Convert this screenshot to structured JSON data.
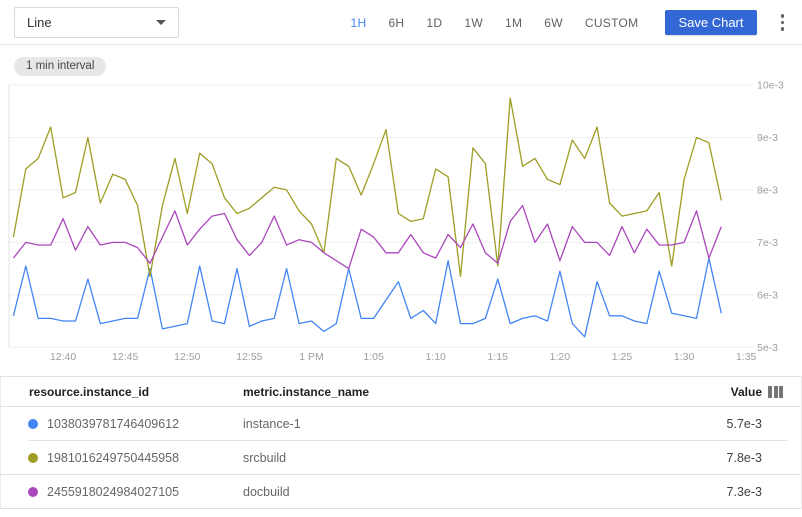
{
  "toolbar": {
    "chart_type_selected": "Line",
    "time_ranges": [
      "1H",
      "6H",
      "1D",
      "1W",
      "1M",
      "6W",
      "CUSTOM"
    ],
    "selected_range": "1H",
    "save_button": "Save Chart"
  },
  "chart": {
    "interval_chip": "1 min interval"
  },
  "chart_data": {
    "type": "line",
    "title": "",
    "xlabel": "",
    "ylabel": "",
    "grid": true,
    "legend_position": "table-below",
    "y_unit": "e-3",
    "y_range_e3": [
      5,
      10
    ],
    "y_tick_labels": [
      "10e-3",
      "9e-3",
      "8e-3",
      "7e-3",
      "6e-3",
      "5e-3"
    ],
    "x_tick_labels": [
      "12:40",
      "12:45",
      "12:50",
      "12:55",
      "1 PM",
      "1:05",
      "1:10",
      "1:15",
      "1:20",
      "1:25",
      "1:30",
      "1:35"
    ],
    "x": [
      "12:36",
      "12:37",
      "12:38",
      "12:39",
      "12:40",
      "12:41",
      "12:42",
      "12:43",
      "12:44",
      "12:45",
      "12:46",
      "12:47",
      "12:48",
      "12:49",
      "12:50",
      "12:51",
      "12:52",
      "12:53",
      "12:54",
      "12:55",
      "12:56",
      "12:57",
      "12:58",
      "12:59",
      "1:00",
      "1:01",
      "1:02",
      "1:03",
      "1:04",
      "1:05",
      "1:06",
      "1:07",
      "1:08",
      "1:09",
      "1:10",
      "1:11",
      "1:12",
      "1:13",
      "1:14",
      "1:15",
      "1:16",
      "1:17",
      "1:18",
      "1:19",
      "1:20",
      "1:21",
      "1:22",
      "1:23",
      "1:24",
      "1:25",
      "1:26",
      "1:27",
      "1:28",
      "1:29",
      "1:30",
      "1:31",
      "1:32",
      "1:33"
    ],
    "series": [
      {
        "name": "instance-1",
        "color": "#4285F4",
        "latest_value": "5.7e-3",
        "values_e3": [
          5.6,
          6.55,
          5.55,
          5.55,
          5.5,
          5.5,
          6.3,
          5.45,
          5.5,
          5.55,
          5.55,
          6.5,
          5.35,
          5.4,
          5.45,
          6.55,
          5.5,
          5.45,
          6.5,
          5.4,
          5.5,
          5.55,
          6.5,
          5.45,
          5.5,
          5.3,
          5.45,
          6.5,
          5.55,
          5.55,
          5.9,
          6.25,
          5.55,
          5.7,
          5.45,
          6.65,
          5.45,
          5.45,
          5.55,
          6.3,
          5.45,
          5.55,
          5.6,
          5.5,
          6.45,
          5.45,
          5.2,
          6.25,
          5.6,
          5.6,
          5.5,
          5.45,
          6.45,
          5.65,
          5.6,
          5.55,
          6.7,
          5.65
        ]
      },
      {
        "name": "srcbuild",
        "color": "#9E9D24",
        "latest_value": "7.8e-3",
        "values_e3": [
          7.1,
          8.4,
          8.6,
          9.2,
          7.85,
          7.95,
          9.0,
          7.75,
          8.3,
          8.2,
          7.7,
          6.35,
          7.7,
          8.6,
          7.55,
          8.7,
          8.5,
          7.85,
          7.55,
          7.65,
          7.85,
          8.05,
          8.0,
          7.6,
          7.35,
          6.8,
          8.6,
          8.45,
          7.9,
          8.5,
          9.15,
          7.55,
          7.4,
          7.45,
          8.4,
          8.25,
          6.35,
          8.8,
          8.5,
          6.55,
          9.75,
          8.45,
          8.6,
          8.2,
          8.1,
          8.95,
          8.6,
          9.2,
          7.75,
          7.5,
          7.55,
          7.6,
          7.95,
          6.55,
          8.2,
          9.0,
          8.9,
          7.8
        ]
      },
      {
        "name": "docbuild",
        "color": "#AB47BC",
        "latest_value": "7.3e-3",
        "values_e3": [
          6.7,
          7.0,
          6.95,
          6.95,
          7.45,
          6.85,
          7.3,
          6.95,
          7.0,
          7.0,
          6.9,
          6.6,
          7.1,
          7.6,
          6.95,
          7.25,
          7.5,
          7.55,
          7.05,
          6.75,
          7.0,
          7.5,
          6.95,
          7.05,
          7.0,
          6.8,
          6.65,
          6.5,
          7.25,
          7.1,
          6.8,
          6.8,
          7.15,
          6.8,
          6.7,
          7.15,
          6.9,
          7.35,
          6.8,
          6.6,
          7.4,
          7.7,
          7.0,
          7.35,
          6.65,
          7.3,
          7.0,
          7.0,
          6.75,
          7.3,
          6.8,
          7.25,
          6.95,
          6.95,
          7.0,
          7.6,
          6.7,
          7.3
        ]
      }
    ]
  },
  "table": {
    "columns": [
      "resource.instance_id",
      "metric.instance_name",
      "Value"
    ],
    "rows": [
      {
        "color": "#4285F4",
        "instance_id": "1038039781746409612",
        "instance_name": "instance-1",
        "value": "5.7e-3"
      },
      {
        "color": "#9E9D24",
        "instance_id": "1981016249750445958",
        "instance_name": "srcbuild",
        "value": "7.8e-3"
      },
      {
        "color": "#AB47BC",
        "instance_id": "2455918024984027105",
        "instance_name": "docbuild",
        "value": "7.3e-3"
      }
    ]
  }
}
